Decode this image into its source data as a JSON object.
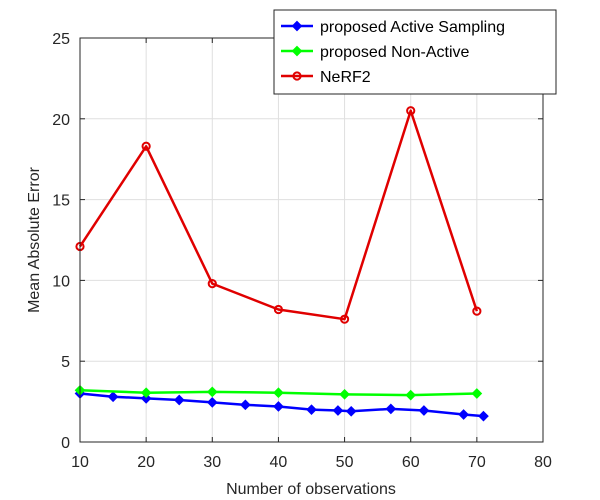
{
  "chart_data": {
    "type": "line",
    "title": "",
    "xlabel": "Number of observations",
    "ylabel": "Mean Absolute Error",
    "xlim": [
      10,
      80
    ],
    "ylim": [
      0,
      25
    ],
    "xticks": [
      10,
      20,
      30,
      40,
      50,
      60,
      70,
      80
    ],
    "yticks": [
      0,
      5,
      10,
      15,
      20,
      25
    ],
    "grid": true,
    "legend_position": "top-right",
    "series": [
      {
        "name": "proposed Active Sampling",
        "color": "#0000ff",
        "marker": "diamond",
        "x": [
          10,
          15,
          20,
          25,
          30,
          35,
          40,
          45,
          49,
          51,
          57,
          62,
          68,
          71
        ],
        "y": [
          3.0,
          2.8,
          2.7,
          2.6,
          2.45,
          2.3,
          2.2,
          2.0,
          1.95,
          1.9,
          2.05,
          1.95,
          1.7,
          1.6
        ]
      },
      {
        "name": "proposed Non-Active",
        "color": "#00ff00",
        "marker": "diamond",
        "x": [
          10,
          20,
          30,
          40,
          50,
          60,
          70
        ],
        "y": [
          3.2,
          3.05,
          3.1,
          3.05,
          2.95,
          2.9,
          3.0
        ]
      },
      {
        "name": "NeRF2",
        "color": "#e00000",
        "marker": "circle",
        "x": [
          10,
          20,
          30,
          40,
          50,
          60,
          70
        ],
        "y": [
          12.1,
          18.3,
          9.8,
          8.2,
          7.6,
          20.5,
          8.1
        ]
      }
    ]
  }
}
